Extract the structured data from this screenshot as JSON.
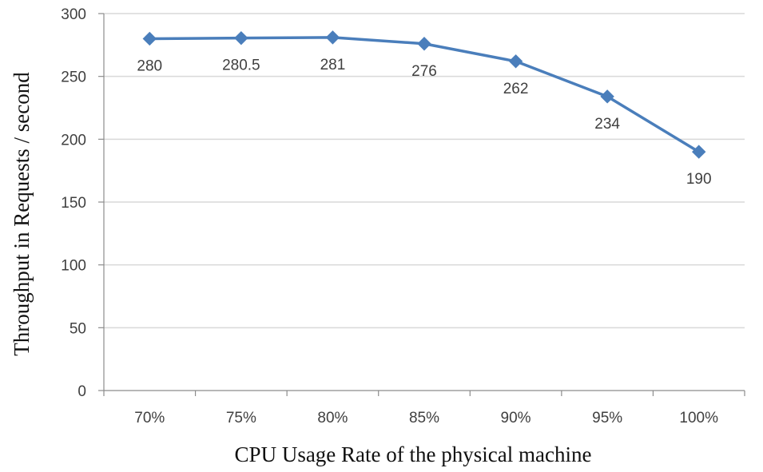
{
  "chart_data": {
    "type": "line",
    "title": "",
    "xlabel": "CPU Usage Rate of the physical machine",
    "ylabel": "Throughput in Requests / second",
    "categories": [
      "70%",
      "75%",
      "80%",
      "85%",
      "90%",
      "95%",
      "100%"
    ],
    "series": [
      {
        "values": [
          280,
          280.5,
          281,
          276,
          262,
          234,
          190
        ],
        "data_labels": [
          "280",
          "280.5",
          "281",
          "276",
          "262",
          "234",
          "190"
        ],
        "color": "#4a7ebb",
        "marker": "diamond"
      }
    ],
    "ylim": [
      0,
      300
    ],
    "yticks": [
      0,
      50,
      100,
      150,
      200,
      250,
      300
    ],
    "ytick_labels": [
      "0",
      "50",
      "100",
      "150",
      "200",
      "250",
      "300"
    ],
    "grid": "horizontal",
    "legend": "none",
    "colors": {
      "gridline": "#d9d9d9",
      "axis": "#8c8c8c",
      "text": "#404040"
    }
  }
}
